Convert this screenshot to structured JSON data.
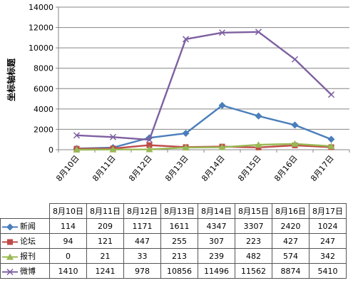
{
  "chart_data": {
    "type": "line",
    "ylabel": "坐标轴标题",
    "ylim": [
      0,
      14000
    ],
    "yticks": [
      0,
      2000,
      4000,
      6000,
      8000,
      10000,
      12000,
      14000
    ],
    "grid": "horizontal",
    "categories": [
      "8月10日",
      "8月11日",
      "8月12日",
      "8月13日",
      "8月14日",
      "8月15日",
      "8月16日",
      "8月17日"
    ],
    "series": [
      {
        "name": "新闻",
        "values": [
          114,
          209,
          1171,
          1611,
          4347,
          3307,
          2420,
          1024
        ],
        "color": "#4a7ebb",
        "marker": "diamond"
      },
      {
        "name": "论坛",
        "values": [
          94,
          121,
          447,
          255,
          307,
          223,
          427,
          247
        ],
        "color": "#be4b48",
        "marker": "square"
      },
      {
        "name": "报刊",
        "values": [
          0,
          21,
          33,
          213,
          239,
          482,
          574,
          342
        ],
        "color": "#98b954",
        "marker": "triangle"
      },
      {
        "name": "微博",
        "values": [
          1410,
          1241,
          978,
          10856,
          11496,
          11562,
          8874,
          5410
        ],
        "color": "#7d60a0",
        "marker": "x"
      }
    ],
    "legend": "data-table"
  }
}
